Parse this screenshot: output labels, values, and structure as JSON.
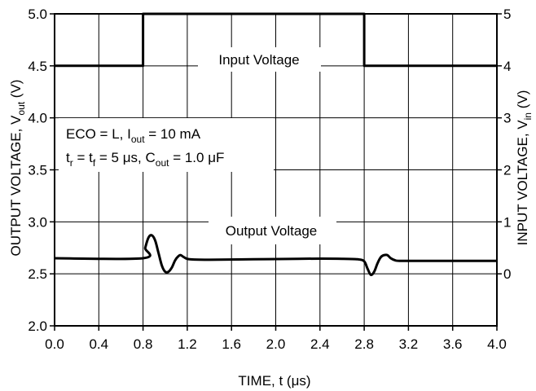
{
  "chart_data": {
    "type": "line",
    "xlabel": {
      "main": "TIME, t (",
      "mu": "μ",
      "tail": "s)"
    },
    "ylabel_left": {
      "main": "OUTPUT VOLTAGE, V",
      "sub": "out",
      "tail": " (V)"
    },
    "ylabel_right": {
      "main": "INPUT VOLTAGE, V",
      "sub": "in",
      "tail": " (V)"
    },
    "xlim": [
      0.0,
      4.0
    ],
    "ylim_left": [
      2.0,
      5.0
    ],
    "ylim_right": [
      -1,
      5
    ],
    "x_ticks": [
      "0.0",
      "0.4",
      "0.8",
      "1.2",
      "1.6",
      "2.0",
      "2.4",
      "2.8",
      "3.2",
      "3.6",
      "4.0"
    ],
    "y_left_ticks": [
      "2.0",
      "2.5",
      "3.0",
      "3.5",
      "4.0",
      "4.5",
      "5.0"
    ],
    "y_right_ticks": [
      "0",
      "1",
      "2",
      "3",
      "4",
      "5"
    ],
    "grid": true,
    "annotations": {
      "line1_a": "ECO = L, I",
      "line1_sub": "out",
      "line1_b": " = 10 mA",
      "line2_a": "t",
      "line2_sub1": "r",
      "line2_b": " = t",
      "line2_sub2": "f",
      "line2_c": " = 5 ",
      "line2_mu1": "μ",
      "line2_d": "s, C",
      "line2_sub3": "out",
      "line2_e": " = 1.0 ",
      "line2_mu2": "μ",
      "line2_f": "F"
    },
    "series": [
      {
        "name": "Input Voltage",
        "axis": "right",
        "x": [
          0.0,
          0.8,
          0.8,
          2.8,
          2.8,
          4.0
        ],
        "y": [
          4.0,
          4.0,
          5.0,
          5.0,
          4.0,
          4.0
        ]
      },
      {
        "name": "Output Voltage",
        "axis": "left",
        "x": [
          0.0,
          0.8,
          0.82,
          0.85,
          0.88,
          0.91,
          0.94,
          0.97,
          1.0,
          1.03,
          1.06,
          1.09,
          1.12,
          1.14,
          1.17,
          1.22,
          1.4,
          1.8,
          2.2,
          2.6,
          2.74,
          2.8,
          2.83,
          2.86,
          2.89,
          2.92,
          2.95,
          2.98,
          3.01,
          3.04,
          3.08,
          3.12,
          3.3,
          3.6,
          4.0
        ],
        "y": [
          2.65,
          2.65,
          2.75,
          2.85,
          2.87,
          2.82,
          2.7,
          2.58,
          2.52,
          2.52,
          2.56,
          2.63,
          2.67,
          2.68,
          2.66,
          2.64,
          2.635,
          2.64,
          2.645,
          2.645,
          2.64,
          2.62,
          2.55,
          2.49,
          2.52,
          2.6,
          2.66,
          2.68,
          2.68,
          2.65,
          2.63,
          2.625,
          2.625,
          2.625,
          2.625
        ]
      }
    ]
  }
}
